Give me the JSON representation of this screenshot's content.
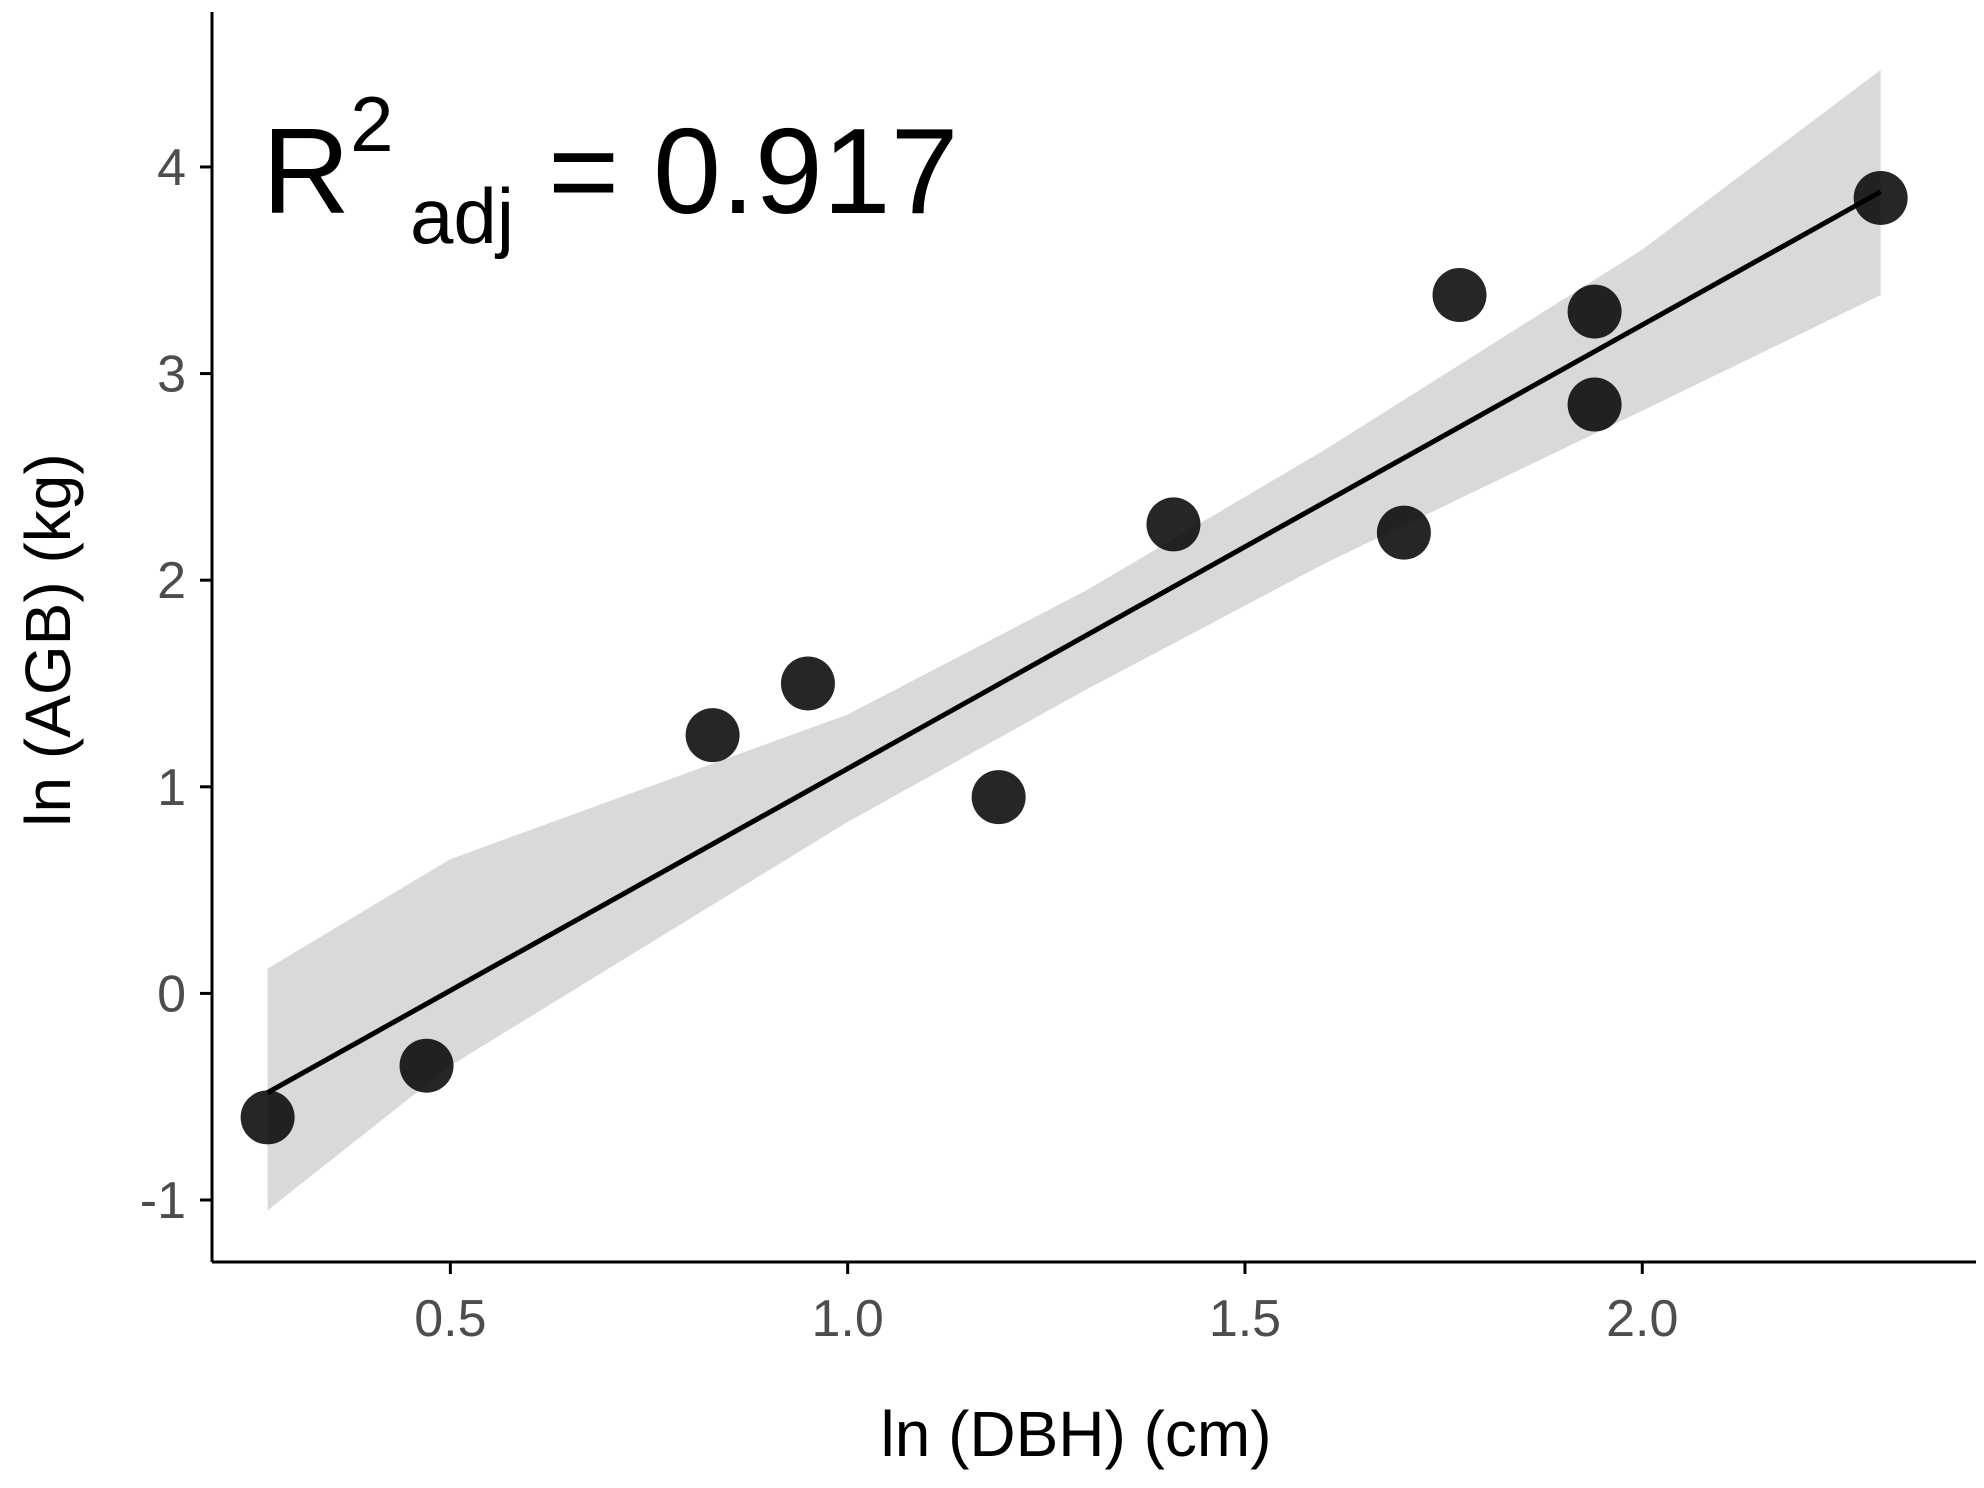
{
  "chart_data": {
    "type": "scatter",
    "xlabel": "ln (DBH) (cm)",
    "ylabel": "ln (AGB) (kg)",
    "xlim": [
      0.2,
      2.42
    ],
    "ylim": [
      -1.3,
      4.75
    ],
    "x_ticks": [
      0.5,
      1.0,
      1.5,
      2.0
    ],
    "x_tick_labels": [
      "0.5",
      "1.0",
      "1.5",
      "2.0"
    ],
    "y_ticks": [
      -1,
      0,
      1,
      2,
      3,
      4
    ],
    "y_tick_labels": [
      "-1",
      "0",
      "1",
      "2",
      "3",
      "4"
    ],
    "grid": false,
    "annotation": {
      "base": "R",
      "superscript": "2",
      "subscript": "adj",
      "rest": " = 0.917"
    },
    "points": [
      {
        "x": 0.27,
        "y": -0.6
      },
      {
        "x": 0.47,
        "y": -0.35
      },
      {
        "x": 0.83,
        "y": 1.25
      },
      {
        "x": 0.95,
        "y": 1.5
      },
      {
        "x": 1.19,
        "y": 0.95
      },
      {
        "x": 1.41,
        "y": 2.27
      },
      {
        "x": 1.7,
        "y": 2.23
      },
      {
        "x": 1.77,
        "y": 3.38
      },
      {
        "x": 1.94,
        "y": 3.3
      },
      {
        "x": 1.94,
        "y": 2.85
      },
      {
        "x": 2.3,
        "y": 3.85
      }
    ],
    "fit_line": {
      "x": [
        0.27,
        2.3
      ],
      "y": [
        -0.48,
        3.88
      ]
    },
    "confidence_band": {
      "x": [
        0.27,
        0.5,
        1.0,
        1.3,
        1.6,
        2.0,
        2.3
      ],
      "lower": [
        -1.05,
        -0.35,
        0.83,
        1.47,
        2.08,
        2.82,
        3.38
      ],
      "upper": [
        0.12,
        0.65,
        1.35,
        1.95,
        2.63,
        3.6,
        4.47
      ]
    },
    "colors": {
      "points": "#000000",
      "line": "#000000",
      "band": "#d9d9d9",
      "axis": "#000000",
      "tick_labels": "#4d4d4d"
    }
  }
}
